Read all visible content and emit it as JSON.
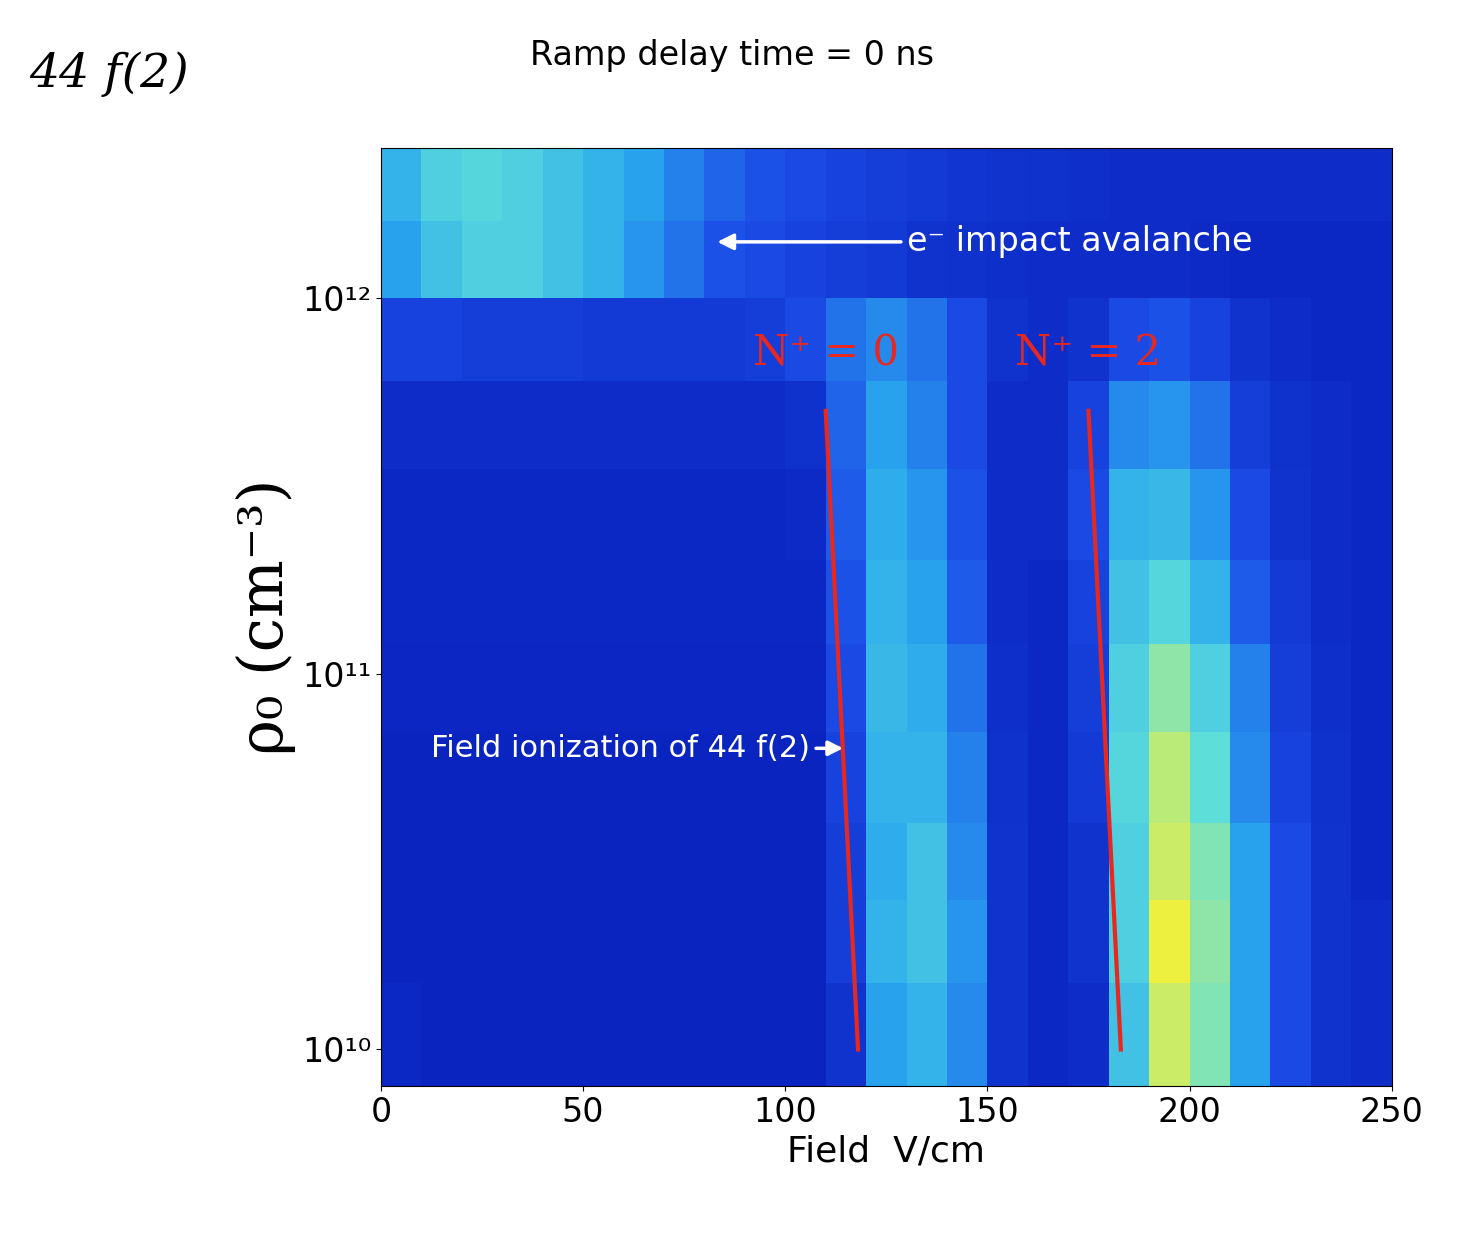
{
  "chart_data": {
    "type": "heatmap",
    "title": "Ramp delay time = 0 ns",
    "state_label": "44 f(2)",
    "x_label": "Field  V/cm",
    "y_label": "ρ₀ (cm⁻³)",
    "log": "y",
    "xlim": [
      0,
      250
    ],
    "ylim": [
      8000000000,
      2500000000000
    ],
    "xticks": [
      0,
      50,
      100,
      150,
      200,
      250
    ],
    "yticks": [
      {
        "value": 10000000000,
        "label": "10¹⁰"
      },
      {
        "value": 100000000000,
        "label": "10¹¹"
      },
      {
        "value": 1000000000000,
        "label": "10¹²"
      }
    ],
    "x_edges": [
      0,
      10,
      20,
      30,
      40,
      50,
      60,
      70,
      80,
      90,
      100,
      110,
      120,
      130,
      140,
      150,
      160,
      170,
      180,
      190,
      200,
      210,
      220,
      230,
      240,
      250
    ],
    "y_edges": [
      8000000000,
      15000000000,
      25000000000,
      40000000000,
      70000000000,
      120000000000,
      200000000000,
      350000000000,
      600000000000,
      1000000000000,
      1600000000000,
      2500000000000
    ],
    "cells": [
      [
        0.1,
        0.08,
        0.08,
        0.08,
        0.08,
        0.08,
        0.08,
        0.08,
        0.08,
        0.08,
        0.08,
        0.15,
        0.45,
        0.5,
        0.4,
        0.15,
        0.1,
        0.12,
        0.55,
        0.8,
        0.7,
        0.45,
        0.25,
        0.15,
        0.12
      ],
      [
        0.08,
        0.08,
        0.08,
        0.08,
        0.08,
        0.08,
        0.08,
        0.08,
        0.08,
        0.08,
        0.08,
        0.2,
        0.5,
        0.55,
        0.42,
        0.15,
        0.1,
        0.15,
        0.6,
        0.85,
        0.72,
        0.45,
        0.25,
        0.15,
        0.12
      ],
      [
        0.08,
        0.08,
        0.08,
        0.08,
        0.08,
        0.08,
        0.08,
        0.08,
        0.08,
        0.08,
        0.08,
        0.2,
        0.48,
        0.55,
        0.4,
        0.15,
        0.1,
        0.15,
        0.6,
        0.8,
        0.7,
        0.45,
        0.25,
        0.15,
        0.1
      ],
      [
        0.08,
        0.08,
        0.08,
        0.08,
        0.08,
        0.08,
        0.08,
        0.08,
        0.08,
        0.08,
        0.08,
        0.22,
        0.5,
        0.5,
        0.38,
        0.14,
        0.1,
        0.18,
        0.62,
        0.78,
        0.65,
        0.4,
        0.22,
        0.14,
        0.1
      ],
      [
        0.09,
        0.09,
        0.09,
        0.09,
        0.09,
        0.09,
        0.09,
        0.09,
        0.09,
        0.09,
        0.09,
        0.25,
        0.52,
        0.48,
        0.35,
        0.13,
        0.1,
        0.2,
        0.6,
        0.72,
        0.6,
        0.38,
        0.2,
        0.13,
        0.1
      ],
      [
        0.1,
        0.1,
        0.1,
        0.1,
        0.1,
        0.1,
        0.1,
        0.1,
        0.1,
        0.1,
        0.1,
        0.28,
        0.5,
        0.45,
        0.3,
        0.12,
        0.1,
        0.22,
        0.55,
        0.62,
        0.5,
        0.3,
        0.18,
        0.12,
        0.1
      ],
      [
        0.1,
        0.1,
        0.1,
        0.1,
        0.1,
        0.1,
        0.1,
        0.1,
        0.1,
        0.1,
        0.11,
        0.3,
        0.48,
        0.42,
        0.28,
        0.12,
        0.12,
        0.25,
        0.5,
        0.52,
        0.42,
        0.25,
        0.15,
        0.12,
        0.1
      ],
      [
        0.12,
        0.12,
        0.12,
        0.12,
        0.12,
        0.12,
        0.12,
        0.12,
        0.12,
        0.12,
        0.14,
        0.32,
        0.45,
        0.38,
        0.25,
        0.12,
        0.12,
        0.22,
        0.4,
        0.42,
        0.35,
        0.2,
        0.14,
        0.12,
        0.1
      ],
      [
        0.22,
        0.22,
        0.2,
        0.2,
        0.2,
        0.18,
        0.18,
        0.18,
        0.18,
        0.2,
        0.25,
        0.35,
        0.4,
        0.35,
        0.25,
        0.15,
        0.12,
        0.15,
        0.25,
        0.28,
        0.22,
        0.15,
        0.12,
        0.1,
        0.1
      ],
      [
        0.45,
        0.55,
        0.6,
        0.6,
        0.55,
        0.5,
        0.42,
        0.35,
        0.28,
        0.25,
        0.22,
        0.2,
        0.18,
        0.15,
        0.14,
        0.13,
        0.12,
        0.12,
        0.12,
        0.12,
        0.11,
        0.1,
        0.1,
        0.1,
        0.1
      ],
      [
        0.5,
        0.6,
        0.62,
        0.6,
        0.55,
        0.5,
        0.45,
        0.38,
        0.32,
        0.28,
        0.25,
        0.22,
        0.2,
        0.18,
        0.16,
        0.15,
        0.14,
        0.13,
        0.12,
        0.12,
        0.12,
        0.12,
        0.12,
        0.12,
        0.12
      ]
    ],
    "lines": [
      {
        "name": "N⁺ = 0",
        "color": "#e8281e",
        "x": [
          118,
          110
        ],
        "y": [
          10000000000,
          500000000000
        ]
      },
      {
        "name": "N⁺ = 2",
        "color": "#e8281e",
        "x": [
          183,
          175
        ],
        "y": [
          10000000000,
          500000000000
        ]
      }
    ],
    "annotations": [
      "e⁻ impact avalanche",
      "Field ionization of 44 f(2)"
    ]
  }
}
